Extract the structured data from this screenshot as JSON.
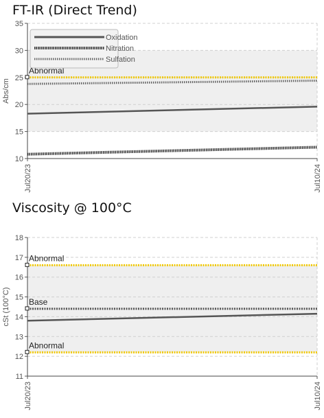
{
  "charts": [
    {
      "title": "FT-IR (Direct Trend)"
    },
    {
      "title": "Viscosity @ 100°C"
    }
  ],
  "colors": {
    "abnormal": "#f0c800",
    "base": "#555555",
    "series": "#555555",
    "grid": "#cfcfcf",
    "band": "#efefef"
  },
  "chart_data": [
    {
      "type": "line",
      "title": "FT-IR (Direct Trend)",
      "ylabel": "Abs/cm",
      "xlabel": "",
      "x": [
        "Jul20/23",
        "Jul10/24"
      ],
      "ylim": [
        10,
        35
      ],
      "yticks": [
        10,
        15,
        20,
        25,
        30,
        35
      ],
      "grid": true,
      "legend_position": "top-left",
      "series": [
        {
          "name": "Oxidation",
          "values": [
            18.3,
            19.6
          ],
          "style": "solid"
        },
        {
          "name": "Nitration",
          "values": [
            10.8,
            12.1
          ],
          "style": "dense-dotted"
        },
        {
          "name": "Sulfation",
          "values": [
            23.8,
            24.4
          ],
          "style": "dotted"
        }
      ],
      "reference_lines": [
        {
          "label": "Abnormal",
          "value": 25,
          "kind": "abnormal"
        }
      ],
      "bands": [
        [
          15,
          30
        ]
      ]
    },
    {
      "type": "line",
      "title": "Viscosity @ 100°C",
      "ylabel": "cSt (100°C)",
      "xlabel": "",
      "x": [
        "Jul20/23",
        "Jul10/24"
      ],
      "ylim": [
        11,
        18
      ],
      "yticks": [
        11,
        12,
        13,
        14,
        15,
        16,
        17,
        18
      ],
      "grid": true,
      "series": [
        {
          "name": "",
          "values": [
            13.8,
            14.15
          ],
          "style": "solid"
        }
      ],
      "reference_lines": [
        {
          "label": "Abnormal",
          "value": 16.6,
          "kind": "abnormal"
        },
        {
          "label": "Base",
          "value": 14.4,
          "kind": "base"
        },
        {
          "label": "Abnormal",
          "value": 12.2,
          "kind": "abnormal"
        }
      ],
      "bands": [
        [
          12.2,
          16.6
        ]
      ]
    }
  ]
}
